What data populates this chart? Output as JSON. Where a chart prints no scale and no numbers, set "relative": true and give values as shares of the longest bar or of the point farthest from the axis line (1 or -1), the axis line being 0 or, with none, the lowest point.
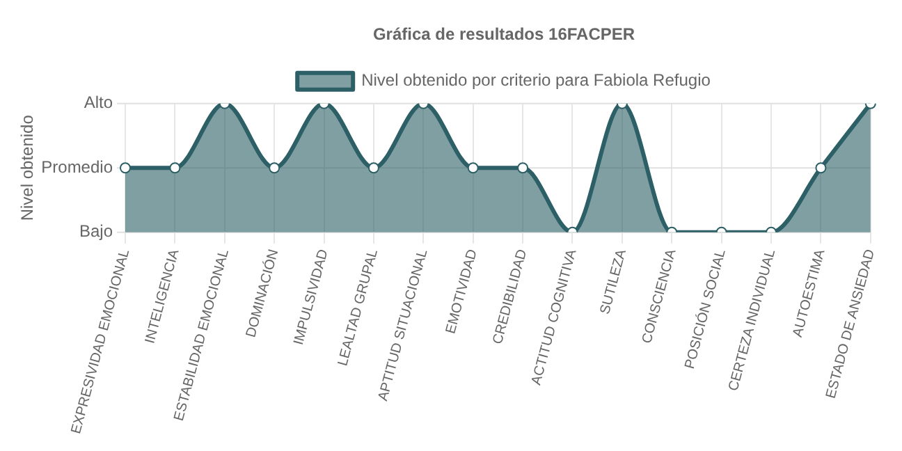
{
  "chart_data": {
    "type": "area",
    "title": "Gráfica de resultados 16FACPER",
    "ylabel": "Nivel obtenido",
    "categories": [
      "EXPRESIVIDAD EMOCIONAL",
      "INTELIGENCIA",
      "ESTABILIDAD EMOCIONAL",
      "DOMINACIÓN",
      "IMPULSIVIDAD",
      "LEALTAD GRUPAL",
      "APTITUD SITUACIONAL",
      "EMOTIVIDAD",
      "CREDIBILIDAD",
      "ACTITUD COGNITIVA",
      "SUTILEZA",
      "CONSCIENCIA",
      "POSICIÓN SOCIAL",
      "CERTEZA INDIVIDUAL",
      "AUTOESTIMA",
      "ESTADO DE ANSIEDAD"
    ],
    "series": [
      {
        "name": "Nivel obtenido por criterio para Fabiola Refugio",
        "color": "#2c5f66",
        "values": [
          0.5,
          0.5,
          1,
          0.5,
          1,
          0.5,
          1,
          0.5,
          0.5,
          0,
          1,
          0,
          0,
          0,
          0.5,
          1
        ]
      }
    ],
    "relative": true,
    "ref_lines": [
      {
        "axis": "y",
        "value": 1,
        "label": "Alto",
        "color": "#e0e0e0"
      },
      {
        "axis": "y",
        "value": 0.5,
        "label": "Promedio",
        "color": "#e0e0e0"
      },
      {
        "axis": "y",
        "value": 0,
        "label": "Bajo",
        "color": "#e0e0e0"
      }
    ],
    "grid": "x",
    "legend": "top",
    "marker": "circle",
    "line_style": "solid"
  }
}
